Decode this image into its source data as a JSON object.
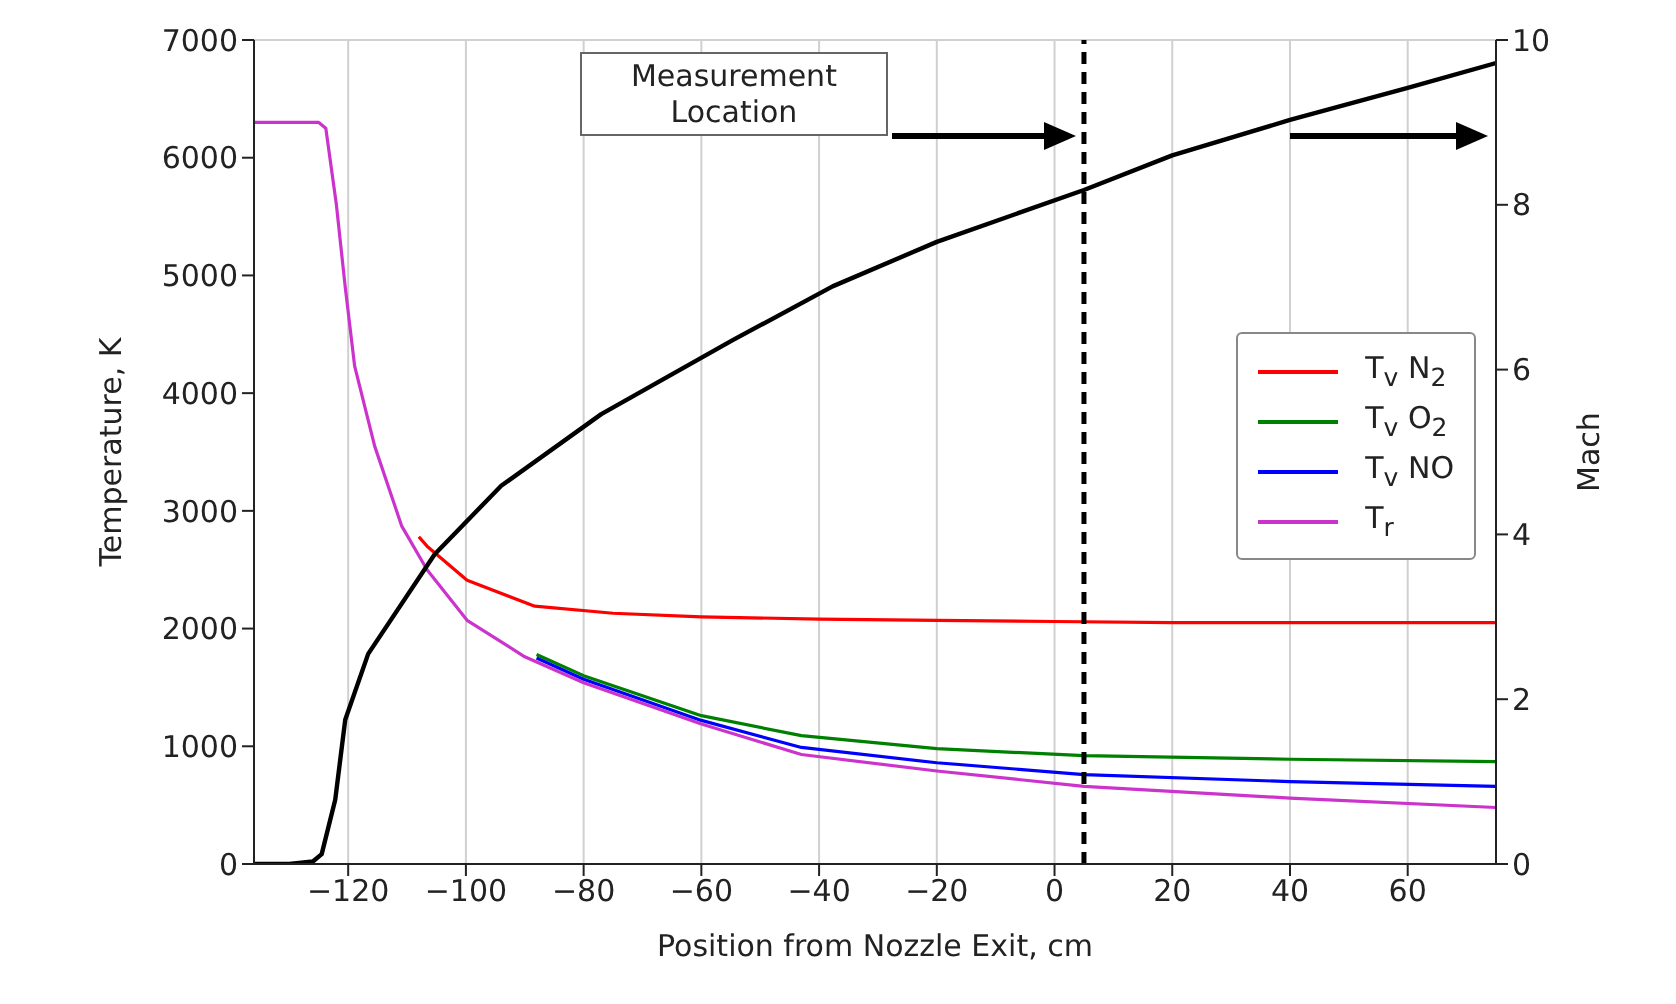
{
  "chart_data": {
    "type": "line",
    "xlabel": "Position from Nozzle Exit, cm",
    "ylabel": "Temperature, K",
    "y2label": "Mach",
    "xlim": [
      -136,
      75
    ],
    "xticks": [
      {
        "value": -120,
        "label": "−120"
      },
      {
        "value": -100,
        "label": "−100"
      },
      {
        "value": -80,
        "label": "−80"
      },
      {
        "value": -60,
        "label": "−60"
      },
      {
        "value": -40,
        "label": "−40"
      },
      {
        "value": -20,
        "label": "−20"
      },
      0,
      20,
      40,
      60
    ],
    "ylim": [
      0,
      7000
    ],
    "yticks": [
      0,
      1000,
      2000,
      3000,
      4000,
      5000,
      6000,
      7000
    ],
    "y2lim": [
      0,
      10
    ],
    "y2ticks": [
      0,
      2,
      4,
      6,
      8,
      10
    ],
    "grid": true,
    "legend": "right",
    "marker": "none",
    "line_style": "solid",
    "annotations": [
      "Measurement Location"
    ],
    "ref_lines": [
      {
        "axis": "x",
        "value": 5,
        "color": "#000000",
        "line_style": "dashed"
      }
    ],
    "series": [
      {
        "name": "T$_{v}$ N$_{2}$",
        "color": "#ff0000",
        "x": [
          -108,
          -106.6,
          -99.8,
          -88.3,
          -75,
          -60,
          -40,
          -20,
          0,
          20,
          40,
          60,
          75
        ],
        "values": [
          2780,
          2700,
          2410,
          2190,
          2130,
          2100,
          2080,
          2070,
          2060,
          2050,
          2050,
          2050,
          2050
        ]
      },
      {
        "name": "T$_{v}$ O$_{2}$",
        "color": "#008000",
        "x": [
          -88,
          -80,
          -60,
          -43,
          -20,
          5,
          40,
          75
        ],
        "values": [
          1780,
          1600,
          1260,
          1090,
          980,
          920,
          890,
          870
        ]
      },
      {
        "name": "T$_{v}$ NO",
        "color": "#0000ff",
        "x": [
          -88,
          -80,
          -60,
          -43,
          -20,
          5,
          40,
          75
        ],
        "values": [
          1750,
          1570,
          1220,
          990,
          860,
          760,
          700,
          660
        ]
      },
      {
        "name": "T$_{r}$",
        "color": "#cc33cc",
        "x": [
          -136,
          -125,
          -123.8,
          -122,
          -120.5,
          -118.9,
          -115.5,
          -110.9,
          -106.6,
          -99.8,
          -90,
          -80,
          -60,
          -43,
          -20,
          5,
          40,
          75
        ],
        "values": [
          6300,
          6300,
          6250,
          5600,
          4900,
          4230,
          3550,
          2870,
          2500,
          2070,
          1760,
          1540,
          1190,
          930,
          790,
          660,
          560,
          480
        ]
      },
      {
        "color": "#000000",
        "axis": "y2",
        "x": [
          -136,
          -130,
          -126,
          -124.5,
          -122.2,
          -120.5,
          -116.6,
          -105.3,
          -94,
          -77,
          -54.6,
          -37.7,
          -20,
          5,
          20,
          40,
          60,
          75
        ],
        "values": [
          0,
          0,
          0.03,
          0.12,
          0.78,
          1.75,
          2.55,
          3.76,
          4.59,
          5.46,
          6.36,
          7.01,
          7.55,
          8.18,
          8.6,
          9.03,
          9.42,
          9.72
        ]
      }
    ]
  }
}
